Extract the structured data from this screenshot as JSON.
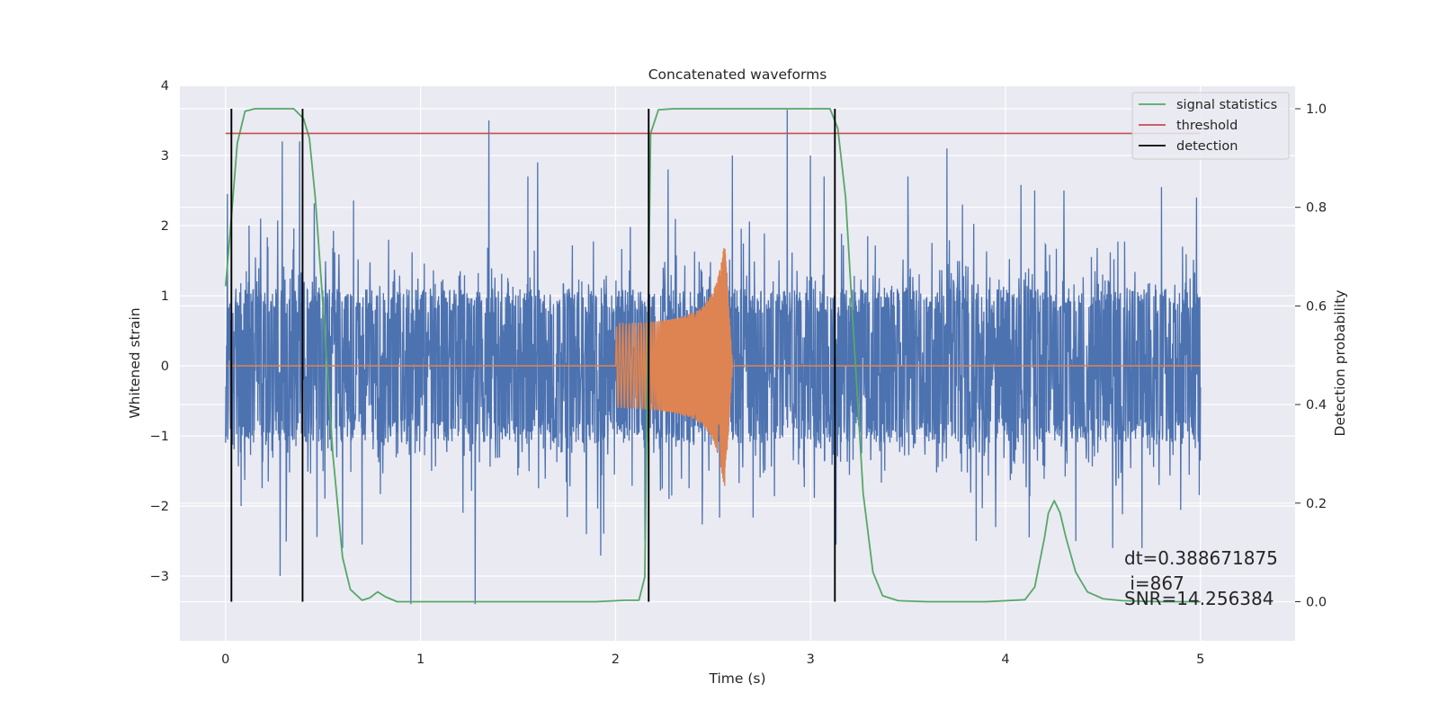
{
  "chart_data": {
    "type": "line",
    "title": "Concatenated waveforms",
    "xlabel": "Time (s)",
    "ylabel_left": "Whitened strain",
    "ylabel_right": "Detection probability",
    "xlim": [
      -0.25,
      5.25
    ],
    "ylim_left": [
      -3.7,
      4.0
    ],
    "ylim_right": [
      -0.047,
      1.047
    ],
    "xticks": [
      0,
      1,
      2,
      3,
      4,
      5
    ],
    "xtick_labels": [
      "0",
      "1",
      "2",
      "3",
      "4",
      "5"
    ],
    "yticks_left": [
      -3,
      -2,
      -1,
      0,
      1,
      2,
      3,
      4
    ],
    "ytick_labels_left": [
      "−3",
      "−2",
      "−1",
      "0",
      "1",
      "2",
      "3",
      "4"
    ],
    "yticks_right": [
      0.0,
      0.2,
      0.4,
      0.6,
      0.8,
      1.0
    ],
    "ytick_labels_right": [
      "0.0",
      "0.2",
      "0.4",
      "0.6",
      "0.8",
      "1.0"
    ],
    "grid": true,
    "legend_position": "top-right",
    "series": [
      {
        "name": "",
        "axis": "left",
        "color": "#4c72b0",
        "description_kind": "noise",
        "x_range": [
          0,
          5
        ],
        "typical_amplitude": 1.2,
        "peak_values": [
          [
            0.01,
            2.45
          ],
          [
            0.08,
            -2.0
          ],
          [
            0.12,
            2.0
          ],
          [
            0.18,
            2.1
          ],
          [
            0.28,
            -3.0
          ],
          [
            0.29,
            3.2
          ],
          [
            0.38,
            3.2
          ],
          [
            0.6,
            -2.6
          ],
          [
            0.7,
            -2.55
          ],
          [
            0.95,
            -3.4
          ],
          [
            1.28,
            -3.4
          ],
          [
            1.35,
            3.5
          ],
          [
            1.55,
            2.7
          ],
          [
            1.6,
            2.9
          ],
          [
            1.85,
            -2.4
          ],
          [
            2.15,
            -2.5
          ],
          [
            2.27,
            2.8
          ],
          [
            2.6,
            3.0
          ],
          [
            2.88,
            3.65
          ],
          [
            3.0,
            3.0
          ],
          [
            3.07,
            2.7
          ],
          [
            3.13,
            -2.55
          ],
          [
            3.5,
            2.7
          ],
          [
            3.7,
            3.1
          ],
          [
            3.78,
            2.3
          ],
          [
            3.85,
            -2.5
          ],
          [
            3.95,
            -2.3
          ],
          [
            4.15,
            2.5
          ],
          [
            4.3,
            2.5
          ],
          [
            4.36,
            -2.5
          ],
          [
            4.55,
            -2.6
          ],
          [
            4.7,
            -2.6
          ],
          [
            4.8,
            2.55
          ],
          [
            4.98,
            2.4
          ]
        ]
      },
      {
        "name": "",
        "axis": "left",
        "color": "#dd8452",
        "description_kind": "chirp",
        "x": [
          0,
          2.0,
          2.005,
          2.1,
          2.2,
          2.3,
          2.4,
          2.45,
          2.5,
          2.53,
          2.56,
          2.58,
          2.6,
          5
        ],
        "envelope": [
          0,
          0,
          0.6,
          0.61,
          0.63,
          0.67,
          0.76,
          0.85,
          1.05,
          1.3,
          1.75,
          0.9,
          0,
          0
        ]
      },
      {
        "name": "signal statistics",
        "axis": "right",
        "color": "#55a868",
        "x": [
          0.0,
          0.03,
          0.06,
          0.1,
          0.15,
          0.35,
          0.4,
          0.43,
          0.46,
          0.5,
          0.55,
          0.6,
          0.64,
          0.7,
          0.74,
          0.78,
          0.82,
          0.88,
          1.0,
          1.5,
          1.9,
          2.05,
          2.12,
          2.15,
          2.18,
          2.22,
          2.3,
          2.5,
          3.1,
          3.14,
          3.18,
          3.22,
          3.27,
          3.32,
          3.37,
          3.45,
          3.6,
          3.9,
          4.1,
          4.15,
          4.2,
          4.22,
          4.25,
          4.28,
          4.31,
          4.36,
          4.42,
          4.5,
          4.6,
          4.8,
          5.0
        ],
        "y": [
          0.64,
          0.78,
          0.93,
          0.995,
          1.0,
          1.0,
          0.98,
          0.94,
          0.82,
          0.6,
          0.3,
          0.09,
          0.025,
          0.003,
          0.008,
          0.02,
          0.01,
          0.0,
          0.0,
          0.0,
          0.0,
          0.003,
          0.003,
          0.05,
          0.95,
          0.998,
          1.0,
          1.0,
          1.0,
          0.96,
          0.82,
          0.55,
          0.22,
          0.06,
          0.012,
          0.002,
          0.0,
          0.0,
          0.004,
          0.03,
          0.13,
          0.18,
          0.205,
          0.18,
          0.13,
          0.06,
          0.02,
          0.006,
          0.002,
          0.0,
          0.0
        ]
      },
      {
        "name": "threshold",
        "axis": "right",
        "color": "#c44e52",
        "x": [
          0,
          5
        ],
        "y": [
          0.95,
          0.95
        ]
      },
      {
        "name": "detection",
        "axis": "right",
        "color": "#000000",
        "kind": "vlines",
        "x": [
          0.03,
          0.395,
          2.17,
          3.125
        ],
        "ymin": 0.0,
        "ymax": 1.0
      }
    ],
    "annotations": {
      "dt": "dt=0.388671875",
      "i": " i=867",
      "snr": "SNR=14.256384"
    },
    "legend": {
      "entries": [
        {
          "label": "signal statistics",
          "color": "#55a868"
        },
        {
          "label": "threshold",
          "color": "#c44e52"
        },
        {
          "label": "detection",
          "color": "#000000"
        }
      ]
    }
  }
}
